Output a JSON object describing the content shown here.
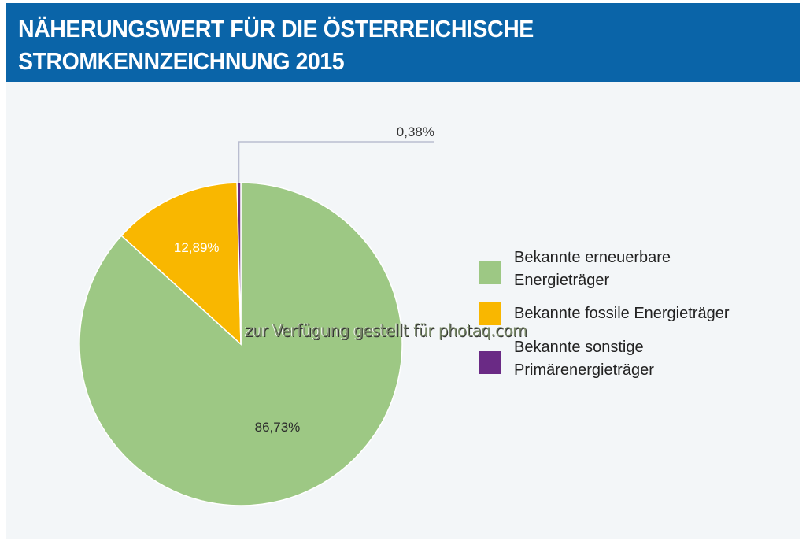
{
  "header": {
    "title_line1": "NÄHERUNGSWERT FÜR DIE ÖSTERREICHISCHE",
    "title_line2": "STROMKENNZEICHNUNG 2015"
  },
  "watermark": "zur Verfügung gestellt für photaq.com",
  "chart_data": {
    "type": "pie",
    "title": "NÄHERUNGSWERT FÜR DIE ÖSTERREICHISCHE STROMKENNZEICHNUNG 2015",
    "categories": [
      "Bekannte erneuerbare Energieträger",
      "Bekannte fossile Energieträger",
      "Bekannte sonstige Primärenergieträger"
    ],
    "values": [
      86.73,
      12.89,
      0.38
    ],
    "value_labels": [
      "86,73%",
      "12,89%",
      "0,38%"
    ],
    "colors": [
      "#9dc884",
      "#f9b700",
      "#6a2a85"
    ],
    "start": "top (12 o'clock), clockwise: erneuerbare, then fossile, then sonstige",
    "legend": {
      "position": "right",
      "items": [
        {
          "label_line1": "Bekannte erneuerbare",
          "label_line2": "Energieträger",
          "color": "#9dc884"
        },
        {
          "label_line1": "Bekannte fossile Energieträger",
          "label_line2": "",
          "color": "#f9b700"
        },
        {
          "label_line1": "Bekannte sonstige",
          "label_line2": "Primärenergieträger",
          "color": "#6a2a85"
        }
      ]
    },
    "annotations": [
      {
        "text": "0,38%",
        "type": "leader-line callout",
        "target": "Bekannte sonstige Primärenergieträger"
      }
    ]
  }
}
